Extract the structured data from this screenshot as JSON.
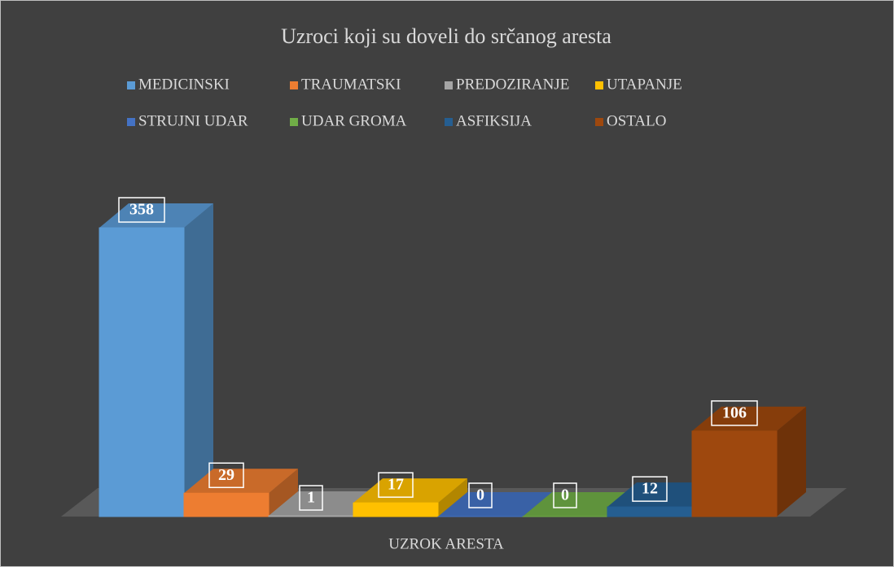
{
  "chart_data": {
    "type": "bar3d",
    "title": "Uzroci koji su doveli do srčanog aresta",
    "categories": [
      "UZROK ARESTA"
    ],
    "series": [
      {
        "name": "MEDICINSKI",
        "color": "#5b9bd5",
        "values": [
          358
        ]
      },
      {
        "name": "TRAUMATSKI",
        "color": "#ed7d31",
        "values": [
          29
        ]
      },
      {
        "name": "PREDOZIRANJE",
        "color": "#a5a5a5",
        "values": [
          1
        ]
      },
      {
        "name": "UTAPANJE",
        "color": "#ffc000",
        "values": [
          17
        ]
      },
      {
        "name": "STRUJNI UDAR",
        "color": "#4472c4",
        "values": [
          0
        ]
      },
      {
        "name": "UDAR GROMA",
        "color": "#70ad47",
        "values": [
          0
        ]
      },
      {
        "name": "ASFIKSIJA",
        "color": "#255e91",
        "values": [
          12
        ]
      },
      {
        "name": "OSTALO",
        "color": "#9e480e",
        "values": [
          106
        ]
      }
    ],
    "legend": "top"
  }
}
